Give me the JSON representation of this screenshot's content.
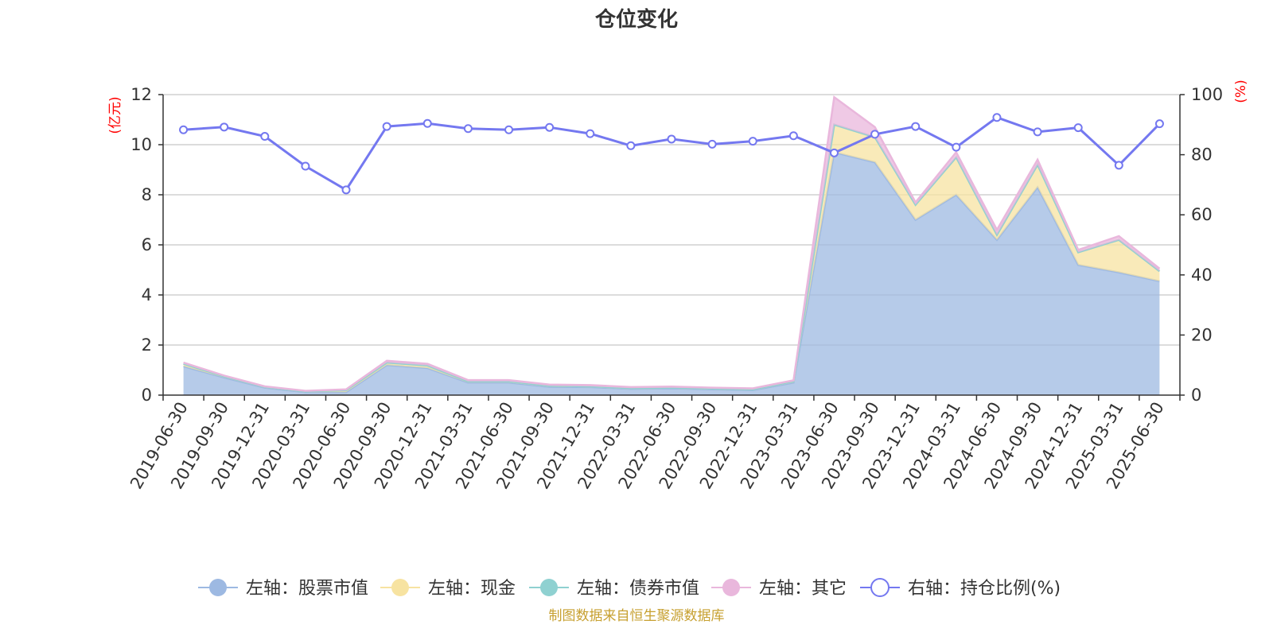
{
  "chart_data": {
    "type": "area",
    "title": "仓位变化",
    "source_note": "制图数据来自恒生聚源数据库",
    "left_axis": {
      "unit": "(亿元)",
      "min": 0,
      "max": 12,
      "ticks": [
        0,
        2,
        4,
        6,
        8,
        10,
        12
      ]
    },
    "right_axis": {
      "unit": "(%)",
      "min": 0,
      "max": 100,
      "ticks": [
        0,
        20,
        40,
        60,
        80,
        100
      ]
    },
    "grid": true,
    "legend_position": "bottom",
    "categories": [
      "2019-06-30",
      "2019-09-30",
      "2019-12-31",
      "2020-03-31",
      "2020-06-30",
      "2020-09-30",
      "2020-12-31",
      "2021-03-31",
      "2021-06-30",
      "2021-09-30",
      "2021-12-31",
      "2022-03-31",
      "2022-06-30",
      "2022-09-30",
      "2022-12-31",
      "2023-03-31",
      "2023-06-30",
      "2023-09-30",
      "2023-12-31",
      "2024-03-31",
      "2024-06-30",
      "2024-09-30",
      "2024-12-31",
      "2025-03-31",
      "2025-06-30"
    ],
    "series": [
      {
        "name": "左轴：股票市值",
        "axis": "left",
        "stacked": true,
        "color": "#9db9e2",
        "values": [
          1.15,
          0.7,
          0.3,
          0.12,
          0.12,
          1.2,
          1.08,
          0.5,
          0.5,
          0.33,
          0.32,
          0.25,
          0.27,
          0.23,
          0.2,
          0.5,
          9.7,
          9.3,
          7.0,
          8.0,
          6.2,
          8.3,
          5.2,
          4.9,
          4.55
        ]
      },
      {
        "name": "左轴：现金",
        "axis": "left",
        "stacked": true,
        "color": "#f7e3a1",
        "values": [
          0.1,
          0.05,
          0.03,
          0.03,
          0.08,
          0.1,
          0.1,
          0.05,
          0.05,
          0.04,
          0.03,
          0.03,
          0.03,
          0.03,
          0.03,
          0.05,
          1.1,
          1.0,
          0.6,
          1.5,
          0.2,
          0.9,
          0.5,
          1.3,
          0.4
        ]
      },
      {
        "name": "左轴：债券市值",
        "axis": "left",
        "stacked": true,
        "color": "#8fd1d1",
        "values": [
          0,
          0,
          0,
          0,
          0,
          0,
          0,
          0,
          0,
          0,
          0,
          0,
          0,
          0,
          0,
          0,
          0,
          0,
          0,
          0,
          0,
          0,
          0,
          0,
          0
        ]
      },
      {
        "name": "左轴：其它",
        "axis": "left",
        "stacked": true,
        "color": "#e9b7dc",
        "values": [
          0.05,
          0.03,
          0.02,
          0.02,
          0.03,
          0.07,
          0.07,
          0.05,
          0.05,
          0.05,
          0.05,
          0.04,
          0.04,
          0.04,
          0.04,
          0.04,
          1.1,
          0.4,
          0.1,
          0.2,
          0.2,
          0.2,
          0.1,
          0.15,
          0.1
        ]
      },
      {
        "name": "右轴：持仓比例(%)",
        "axis": "right",
        "type": "line",
        "color": "#7478f0",
        "values": [
          88.3,
          89.2,
          86.1,
          76.2,
          68.3,
          89.4,
          90.4,
          88.7,
          88.3,
          89.1,
          87.0,
          83.0,
          85.2,
          83.5,
          84.5,
          86.3,
          80.6,
          86.8,
          89.4,
          82.5,
          92.4,
          87.6,
          89.0,
          76.5,
          90.3
        ]
      }
    ]
  }
}
